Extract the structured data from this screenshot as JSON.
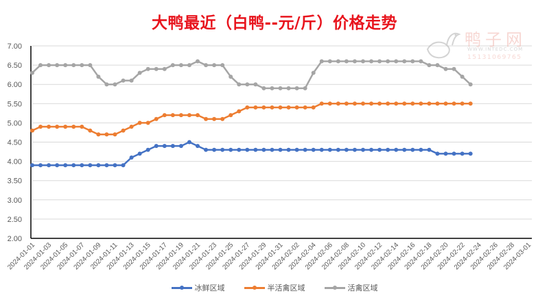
{
  "title": "大鸭最近（白鸭--元/斤）价格走势",
  "watermark": {
    "name": "鸭子网",
    "url": "WWW.INTEDC.COM",
    "phone": "15131069765"
  },
  "legend": [
    {
      "label": "冰鲜区域",
      "color": "#4472c4"
    },
    {
      "label": "半活禽区域",
      "color": "#ed7d31"
    },
    {
      "label": "活禽区域",
      "color": "#a5a5a5"
    }
  ],
  "chart_data": {
    "type": "line",
    "title": "大鸭最近（白鸭--元/斤）价格走势",
    "xlabel": "",
    "ylabel": "",
    "ylim": [
      2.0,
      7.0
    ],
    "yticks": [
      "7.00",
      "6.50",
      "6.00",
      "5.50",
      "5.00",
      "4.50",
      "4.00",
      "3.50",
      "3.00",
      "2.50",
      "2.00"
    ],
    "grid": true,
    "legend_position": "bottom",
    "x_axis_range": [
      "2024-01-01",
      "2024-03-01"
    ],
    "x_tick_labels": [
      "2024-01-01",
      "2024-01-03",
      "2024-01-05",
      "2024-01-07",
      "2024-01-09",
      "2024-01-11",
      "2024-01-13",
      "2024-01-15",
      "2024-01-17",
      "2024-01-19",
      "2024-01-21",
      "2024-01-23",
      "2024-01-25",
      "2024-01-27",
      "2024-01-29",
      "2024-01-31",
      "2024-02-02",
      "2024-02-04",
      "2024-02-06",
      "2024-02-08",
      "2024-02-10",
      "2024-02-12",
      "2024-02-14",
      "2024-02-16",
      "2024-02-18",
      "2024-02-20",
      "2024-02-22",
      "2024-02-24",
      "2024-02-26",
      "2024-02-28",
      "2024-03-01"
    ],
    "x": [
      "2024-01-01",
      "2024-01-02",
      "2024-01-03",
      "2024-01-04",
      "2024-01-05",
      "2024-01-06",
      "2024-01-07",
      "2024-01-08",
      "2024-01-09",
      "2024-01-10",
      "2024-01-11",
      "2024-01-12",
      "2024-01-13",
      "2024-01-14",
      "2024-01-15",
      "2024-01-16",
      "2024-01-17",
      "2024-01-18",
      "2024-01-19",
      "2024-01-20",
      "2024-01-21",
      "2024-01-22",
      "2024-01-23",
      "2024-01-24",
      "2024-01-25",
      "2024-01-26",
      "2024-01-27",
      "2024-01-28",
      "2024-01-29",
      "2024-01-30",
      "2024-01-31",
      "2024-02-01",
      "2024-02-02",
      "2024-02-03",
      "2024-02-04",
      "2024-02-05",
      "2024-02-06",
      "2024-02-07",
      "2024-02-08",
      "2024-02-09",
      "2024-02-10",
      "2024-02-11",
      "2024-02-12",
      "2024-02-13",
      "2024-02-14",
      "2024-02-15",
      "2024-02-16",
      "2024-02-17",
      "2024-02-18",
      "2024-02-19",
      "2024-02-20",
      "2024-02-21",
      "2024-02-22",
      "2024-02-23"
    ],
    "series": [
      {
        "name": "冰鲜区域",
        "color": "#4472c4",
        "values": [
          3.9,
          3.9,
          3.9,
          3.9,
          3.9,
          3.9,
          3.9,
          3.9,
          3.9,
          3.9,
          3.9,
          3.9,
          4.1,
          4.2,
          4.3,
          4.4,
          4.4,
          4.4,
          4.4,
          4.5,
          4.4,
          4.3,
          4.3,
          4.3,
          4.3,
          4.3,
          4.3,
          4.3,
          4.3,
          4.3,
          4.3,
          4.3,
          4.3,
          4.3,
          4.3,
          4.3,
          4.3,
          4.3,
          4.3,
          4.3,
          4.3,
          4.3,
          4.3,
          4.3,
          4.3,
          4.3,
          4.3,
          4.3,
          4.3,
          4.2,
          4.2,
          4.2,
          4.2,
          4.2
        ]
      },
      {
        "name": "半活禽区域",
        "color": "#ed7d31",
        "values": [
          4.8,
          4.9,
          4.9,
          4.9,
          4.9,
          4.9,
          4.9,
          4.8,
          4.7,
          4.7,
          4.7,
          4.8,
          4.9,
          5.0,
          5.0,
          5.1,
          5.2,
          5.2,
          5.2,
          5.2,
          5.2,
          5.1,
          5.1,
          5.1,
          5.2,
          5.3,
          5.4,
          5.4,
          5.4,
          5.4,
          5.4,
          5.4,
          5.4,
          5.4,
          5.4,
          5.5,
          5.5,
          5.5,
          5.5,
          5.5,
          5.5,
          5.5,
          5.5,
          5.5,
          5.5,
          5.5,
          5.5,
          5.5,
          5.5,
          5.5,
          5.5,
          5.5,
          5.5,
          5.5
        ]
      },
      {
        "name": "活禽区域",
        "color": "#a5a5a5",
        "values": [
          6.3,
          6.5,
          6.5,
          6.5,
          6.5,
          6.5,
          6.5,
          6.5,
          6.2,
          6.0,
          6.0,
          6.1,
          6.1,
          6.3,
          6.4,
          6.4,
          6.4,
          6.5,
          6.5,
          6.5,
          6.6,
          6.5,
          6.5,
          6.5,
          6.2,
          6.0,
          6.0,
          6.0,
          5.9,
          5.9,
          5.9,
          5.9,
          5.9,
          5.9,
          6.3,
          6.6,
          6.6,
          6.6,
          6.6,
          6.6,
          6.6,
          6.6,
          6.6,
          6.6,
          6.6,
          6.6,
          6.6,
          6.6,
          6.5,
          6.5,
          6.4,
          6.4,
          6.2,
          6.0
        ]
      }
    ]
  }
}
